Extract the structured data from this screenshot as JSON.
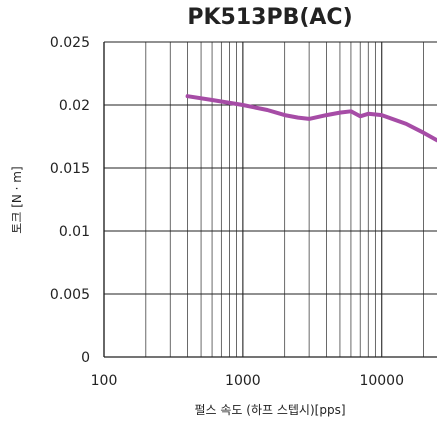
{
  "chart_data": {
    "type": "line",
    "title": "PK513PB(AC)",
    "xlabel": "펄스 속도 (하프 스텝시)[pps]",
    "ylabel": "토크 [N · m]",
    "xscale": "log",
    "xlim": [
      100,
      25000
    ],
    "ylim": [
      0,
      0.025
    ],
    "grid": true,
    "x_ticks": [
      100,
      1000,
      10000
    ],
    "x_tick_labels": [
      "100",
      "1000",
      "10000"
    ],
    "y_ticks": [
      0,
      0.005,
      0.01,
      0.015,
      0.02,
      0.025
    ],
    "y_tick_labels": [
      "0",
      "0.005",
      "0.01",
      "0.015",
      "0.02",
      "0.025"
    ],
    "series": [
      {
        "color": "#a64ca6",
        "x": [
          400,
          600,
          1000,
          1500,
          2000,
          2500,
          3000,
          4000,
          5000,
          6000,
          7000,
          8000,
          10000,
          15000,
          20000,
          25000
        ],
        "y": [
          0.0207,
          0.0204,
          0.02,
          0.0196,
          0.0192,
          0.019,
          0.0189,
          0.0192,
          0.0194,
          0.0195,
          0.0191,
          0.0193,
          0.0192,
          0.0185,
          0.0178,
          0.0172
        ]
      }
    ]
  }
}
